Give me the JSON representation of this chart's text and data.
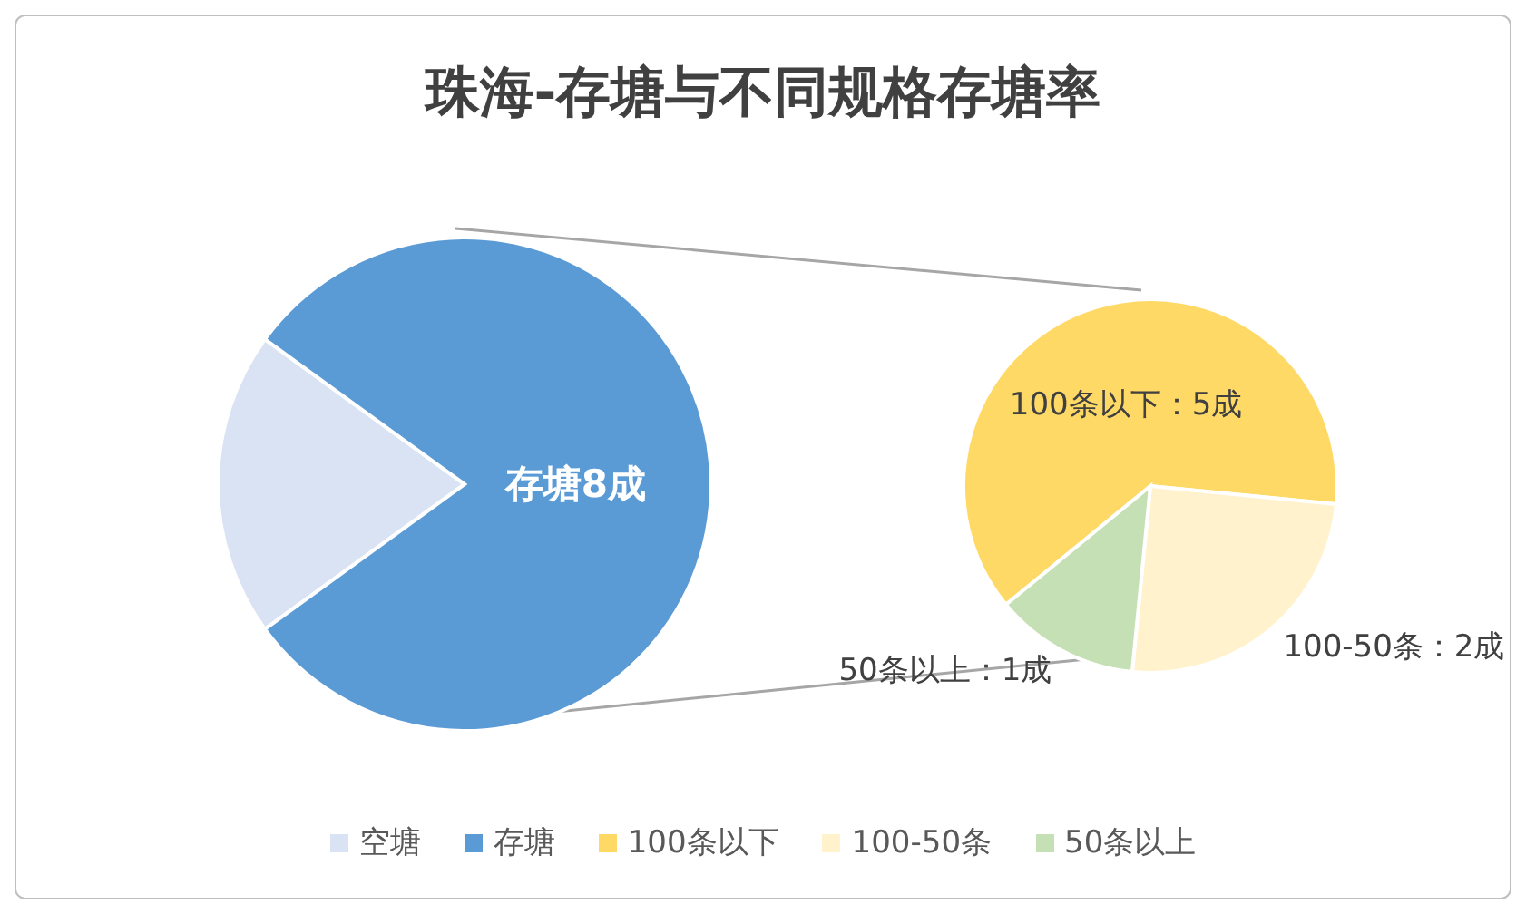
{
  "chart_data": [
    {
      "type": "pie",
      "title": "珠海-存塘与不同规格存塘率",
      "categories": [
        "空塘",
        "存塘"
      ],
      "values": [
        2,
        8
      ],
      "colors": [
        "#dae3f3",
        "#5b9bd5"
      ],
      "value_labels": [
        null,
        "存塘8成"
      ],
      "legend": "bottom"
    },
    {
      "type": "pie",
      "categories": [
        "100条以下",
        "100-50条",
        "50条以上"
      ],
      "values": [
        5,
        2,
        1
      ],
      "colors": [
        "#ffd966",
        "#fff2cc",
        "#c5e0b4"
      ],
      "value_labels": [
        "100条以下：5成",
        "100-50条：2成",
        "50条以上：1成"
      ],
      "legend": "bottom"
    }
  ]
}
